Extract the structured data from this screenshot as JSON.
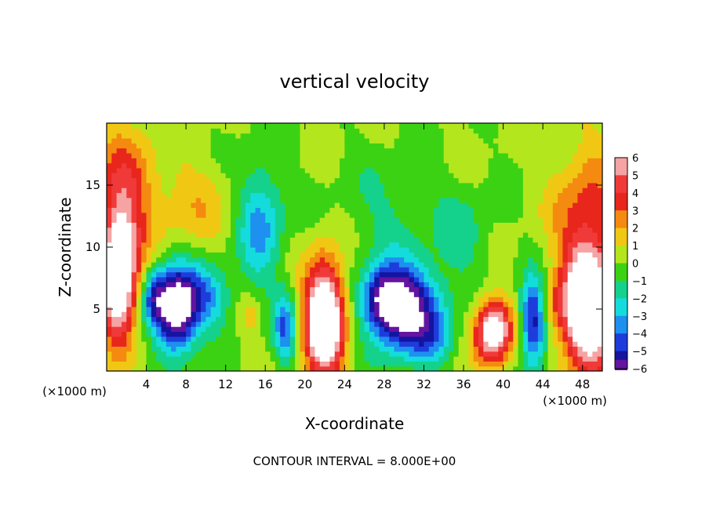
{
  "chart_data": {
    "type": "heatmap",
    "title": "vertical velocity",
    "xlabel": "X-coordinate",
    "ylabel": "Z-coordinate",
    "x_unit": "(×1000 m)",
    "z_unit": "(×1000 m)",
    "xlim": [
      0,
      50
    ],
    "ylim": [
      0,
      20
    ],
    "x_ticks": [
      4,
      8,
      12,
      16,
      20,
      24,
      28,
      32,
      36,
      40,
      44,
      48
    ],
    "y_ticks": [
      5,
      10,
      15
    ],
    "colorbar": {
      "levels": [
        6,
        5,
        4,
        3,
        2,
        1,
        0,
        -1,
        -2,
        -3,
        -4,
        -5,
        -6
      ],
      "colors": [
        "#f5a3a3",
        "#f03a3a",
        "#e8261c",
        "#f58a10",
        "#f0c814",
        "#b4e61e",
        "#3cd214",
        "#14d28c",
        "#14dcdc",
        "#1e90f0",
        "#1e3cdc",
        "#1414a0",
        "#6414a0"
      ]
    },
    "footer": "CONTOUR INTERVAL = 8.000E+00",
    "features": [
      {
        "x": 1.2,
        "z": 7.5,
        "value": 9,
        "sx": 1.3,
        "sz": 3.5
      },
      {
        "x": 1.8,
        "z": 14.5,
        "value": 3.5,
        "sx": 2.0,
        "sz": 4.0
      },
      {
        "x": 7.0,
        "z": 5.0,
        "value": -9,
        "sx": 1.4,
        "sz": 2.3
      },
      {
        "x": 4.8,
        "z": 6.0,
        "value": -4,
        "sx": 0.9,
        "sz": 1.6
      },
      {
        "x": 10.0,
        "z": 6.0,
        "value": -3.5,
        "sx": 1.8,
        "sz": 1.8
      },
      {
        "x": 8.5,
        "z": 13.5,
        "value": 1.6,
        "sx": 3.0,
        "sz": 2.5
      },
      {
        "x": 15.5,
        "z": 12.0,
        "value": -3.5,
        "sx": 1.6,
        "sz": 3.5
      },
      {
        "x": 18.0,
        "z": 3.5,
        "value": -4,
        "sx": 0.8,
        "sz": 2.0
      },
      {
        "x": 14.5,
        "z": 4.5,
        "value": 1.5,
        "sx": 0.8,
        "sz": 1.2
      },
      {
        "x": 22.0,
        "z": 4.2,
        "value": 10,
        "sx": 1.4,
        "sz": 3.2
      },
      {
        "x": 30.0,
        "z": 5.0,
        "value": -8,
        "sx": 2.5,
        "sz": 2.4
      },
      {
        "x": 28.0,
        "z": 6.0,
        "value": -4,
        "sx": 1.5,
        "sz": 1.6
      },
      {
        "x": 28.5,
        "z": 13.0,
        "value": -1.2,
        "sx": 3.5,
        "sz": 3.0
      },
      {
        "x": 39.0,
        "z": 3.2,
        "value": 8,
        "sx": 1.3,
        "sz": 1.8
      },
      {
        "x": 43.0,
        "z": 4.0,
        "value": -6,
        "sx": 0.9,
        "sz": 2.5
      },
      {
        "x": 45.0,
        "z": 5.5,
        "value": 1.5,
        "sx": 0.8,
        "sz": 1.5
      },
      {
        "x": 48.5,
        "z": 5.0,
        "value": 10,
        "sx": 1.8,
        "sz": 3.5
      },
      {
        "x": 48.5,
        "z": 13.0,
        "value": 3,
        "sx": 2.5,
        "sz": 4.0
      },
      {
        "x": 36.0,
        "z": 11.0,
        "value": -1.5,
        "sx": 2.0,
        "sz": 2.5
      },
      {
        "x": 33.0,
        "z": 2.5,
        "value": -2,
        "sx": 1.5,
        "sz": 1.5
      }
    ]
  }
}
